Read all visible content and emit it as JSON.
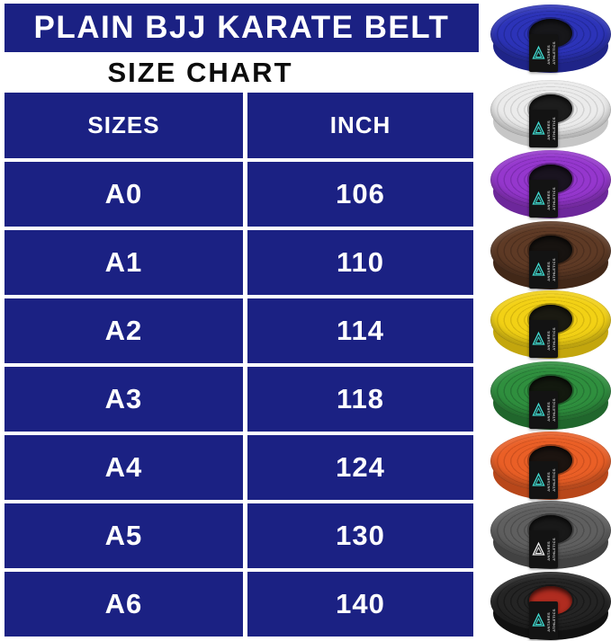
{
  "header": {
    "title": "PLAIN BJJ KARATE BELT",
    "subtitle": "SIZE CHART"
  },
  "colors": {
    "primary_blue": "#1b2183",
    "strap_black": "#131313",
    "logo_teal": "#3fd6cc"
  },
  "size_chart": {
    "columns": [
      "SIZES",
      "INCH"
    ],
    "rows": [
      {
        "size": "A0",
        "inch": "106"
      },
      {
        "size": "A1",
        "inch": "110"
      },
      {
        "size": "A2",
        "inch": "114"
      },
      {
        "size": "A3",
        "inch": "118"
      },
      {
        "size": "A4",
        "inch": "124"
      },
      {
        "size": "A5",
        "inch": "130"
      },
      {
        "size": "A6",
        "inch": "140"
      }
    ]
  },
  "brand": {
    "line1": "ANTARES",
    "line2": "ATHLETICS"
  },
  "belts": [
    {
      "name": "blue",
      "color": "#2c33b8",
      "ring": "#232a9c",
      "side": "#1f2488",
      "hole": "#17171a",
      "logo": "#3fd6cc"
    },
    {
      "name": "white",
      "color": "#ebebeb",
      "ring": "#d2d2d2",
      "side": "#c6c6c6",
      "hole": "#1d1d1d",
      "logo": "#3fd6cc"
    },
    {
      "name": "purple",
      "color": "#9537cd",
      "ring": "#7e2cb2",
      "side": "#6d279b",
      "hole": "#1a1420",
      "logo": "#3fd6cc"
    },
    {
      "name": "brown",
      "color": "#5e3a25",
      "ring": "#4d2f1e",
      "side": "#422818",
      "hole": "#171310",
      "logo": "#3fd6cc"
    },
    {
      "name": "yellow",
      "color": "#f2d115",
      "ring": "#d8b80f",
      "side": "#c3a60d",
      "hole": "#1b1a12",
      "logo": "#3fd6cc"
    },
    {
      "name": "green",
      "color": "#2f8f3e",
      "ring": "#267634",
      "side": "#20662c",
      "hole": "#13190f",
      "logo": "#3fd6cc"
    },
    {
      "name": "orange",
      "color": "#ea5f26",
      "ring": "#cf511f",
      "side": "#b8471a",
      "hole": "#1c1410",
      "logo": "#3fd6cc"
    },
    {
      "name": "gray",
      "color": "#5f5f5f",
      "ring": "#4e4e4e",
      "side": "#424242",
      "hole": "#191919",
      "logo": "#e8e8e8"
    },
    {
      "name": "black",
      "color": "#242424",
      "ring": "#191919",
      "side": "#111111",
      "hole": "#b02c20",
      "logo": "#3fd6cc"
    }
  ]
}
